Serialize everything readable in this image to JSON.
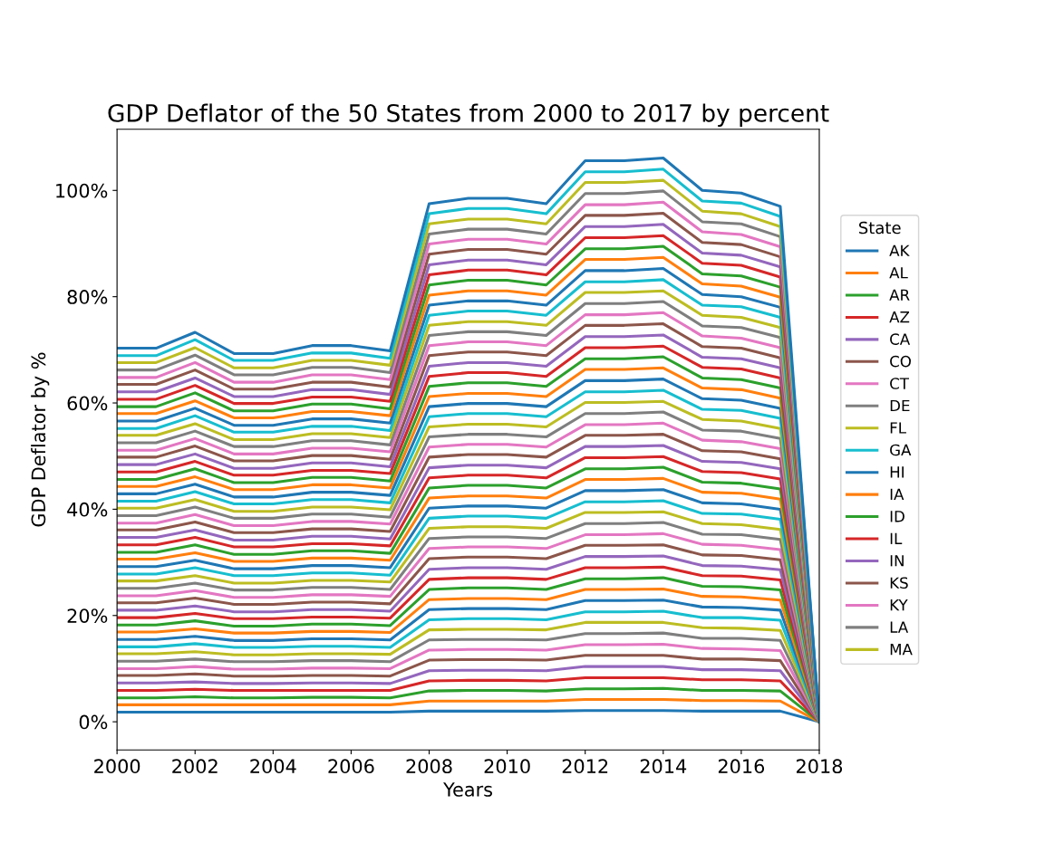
{
  "chart_data": {
    "type": "line",
    "title": "GDP Deflator of the 50 States from 2000 to 2017 by percent",
    "xlabel": "Years",
    "ylabel": "GDP Deflator by %",
    "legend_title": "State",
    "legend": "right",
    "grid": false,
    "x": [
      2000,
      2001,
      2002,
      2003,
      2004,
      2005,
      2006,
      2007,
      2008,
      2009,
      2010,
      2011,
      2012,
      2013,
      2014,
      2015,
      2016,
      2017,
      2018
    ],
    "xlim": [
      2000,
      2018
    ],
    "xticks": [
      2000,
      2002,
      2004,
      2006,
      2008,
      2010,
      2012,
      2014,
      2016,
      2018
    ],
    "ylim": [
      -5.3,
      111.5
    ],
    "yticks": [
      {
        "value": 0,
        "label": "0%"
      },
      {
        "value": 20,
        "label": "20%"
      },
      {
        "value": 40,
        "label": "40%"
      },
      {
        "value": 60,
        "label": "60%"
      },
      {
        "value": 80,
        "label": "80%"
      },
      {
        "value": 100,
        "label": "100%"
      }
    ],
    "series": [
      {
        "name": "AK",
        "color": "#1f77b4",
        "values": [
          1.8,
          1.8,
          1.8,
          1.8,
          1.8,
          1.8,
          1.8,
          1.8,
          2.0,
          2.0,
          2.0,
          2.0,
          2.1,
          2.1,
          2.1,
          2.0,
          2.0,
          2.0,
          0
        ]
      },
      {
        "name": "AL",
        "color": "#ff7f0e",
        "values": [
          3.2,
          3.2,
          3.2,
          3.2,
          3.2,
          3.2,
          3.2,
          3.2,
          3.9,
          3.9,
          3.9,
          3.9,
          4.2,
          4.2,
          4.2,
          4.0,
          4.0,
          3.9,
          0
        ]
      },
      {
        "name": "AR",
        "color": "#2ca02c",
        "values": [
          4.5,
          4.5,
          4.7,
          4.5,
          4.5,
          4.6,
          4.6,
          4.5,
          5.8,
          5.9,
          5.9,
          5.8,
          6.2,
          6.2,
          6.3,
          5.9,
          5.9,
          5.8,
          0
        ]
      },
      {
        "name": "AZ",
        "color": "#d62728",
        "values": [
          5.9,
          5.9,
          6.1,
          5.9,
          5.9,
          5.9,
          5.9,
          5.9,
          7.7,
          7.8,
          7.8,
          7.7,
          8.3,
          8.3,
          8.3,
          7.9,
          7.9,
          7.7,
          0
        ]
      },
      {
        "name": "CA",
        "color": "#9467bd",
        "values": [
          7.3,
          7.3,
          7.5,
          7.2,
          7.2,
          7.3,
          7.3,
          7.2,
          9.6,
          9.7,
          9.7,
          9.6,
          10.4,
          10.4,
          10.4,
          9.8,
          9.8,
          9.6,
          0
        ]
      },
      {
        "name": "CO",
        "color": "#8c564b",
        "values": [
          8.7,
          8.7,
          9.0,
          8.6,
          8.6,
          8.7,
          8.7,
          8.6,
          11.6,
          11.7,
          11.7,
          11.6,
          12.5,
          12.5,
          12.5,
          11.8,
          11.8,
          11.5,
          0
        ]
      },
      {
        "name": "CT",
        "color": "#e377c2",
        "values": [
          10.0,
          10.0,
          10.4,
          9.9,
          9.9,
          10.1,
          10.1,
          10.0,
          13.5,
          13.6,
          13.6,
          13.5,
          14.5,
          14.5,
          14.6,
          13.8,
          13.7,
          13.4,
          0
        ]
      },
      {
        "name": "DE",
        "color": "#7f7f7f",
        "values": [
          11.4,
          11.4,
          11.8,
          11.3,
          11.3,
          11.5,
          11.5,
          11.3,
          15.4,
          15.5,
          15.5,
          15.4,
          16.6,
          16.6,
          16.7,
          15.7,
          15.7,
          15.3,
          0
        ]
      },
      {
        "name": "FL",
        "color": "#bcbd22",
        "values": [
          12.8,
          12.8,
          13.2,
          12.6,
          12.6,
          12.8,
          12.8,
          12.7,
          17.3,
          17.4,
          17.4,
          17.3,
          18.7,
          18.7,
          18.7,
          17.7,
          17.6,
          17.2,
          0
        ]
      },
      {
        "name": "GA",
        "color": "#17becf",
        "values": [
          14.1,
          14.1,
          14.7,
          14.0,
          14.0,
          14.2,
          14.2,
          14.0,
          19.2,
          19.4,
          19.4,
          19.2,
          20.7,
          20.7,
          20.8,
          19.6,
          19.6,
          19.1,
          0
        ]
      },
      {
        "name": "HI",
        "color": "#1f77b4",
        "values": [
          15.5,
          15.5,
          16.1,
          15.3,
          15.3,
          15.6,
          15.6,
          15.4,
          21.1,
          21.3,
          21.3,
          21.1,
          22.8,
          22.8,
          22.9,
          21.6,
          21.5,
          21.0,
          0
        ]
      },
      {
        "name": "IA",
        "color": "#ff7f0e",
        "values": [
          16.9,
          16.9,
          17.5,
          16.7,
          16.7,
          17.0,
          17.0,
          16.8,
          23.0,
          23.2,
          23.2,
          23.0,
          24.9,
          24.9,
          25.0,
          23.6,
          23.5,
          22.9,
          0
        ]
      },
      {
        "name": "ID",
        "color": "#2ca02c",
        "values": [
          18.2,
          18.2,
          19.0,
          18.0,
          18.0,
          18.4,
          18.4,
          18.1,
          24.9,
          25.2,
          25.2,
          24.9,
          26.9,
          26.9,
          27.1,
          25.5,
          25.4,
          24.8,
          0
        ]
      },
      {
        "name": "IL",
        "color": "#d62728",
        "values": [
          19.6,
          19.6,
          20.4,
          19.4,
          19.4,
          19.7,
          19.7,
          19.5,
          26.8,
          27.1,
          27.1,
          26.8,
          29.0,
          29.0,
          29.1,
          27.5,
          27.4,
          26.7,
          0
        ]
      },
      {
        "name": "IN",
        "color": "#9467bd",
        "values": [
          21.0,
          21.0,
          21.8,
          20.7,
          20.7,
          21.1,
          21.1,
          20.8,
          28.7,
          29.0,
          29.0,
          28.7,
          31.1,
          31.1,
          31.2,
          29.4,
          29.3,
          28.6,
          0
        ]
      },
      {
        "name": "KS",
        "color": "#8c564b",
        "values": [
          22.4,
          22.4,
          23.3,
          22.1,
          22.1,
          22.5,
          22.5,
          22.2,
          30.7,
          31.0,
          31.0,
          30.7,
          33.2,
          33.2,
          33.3,
          31.4,
          31.3,
          30.5,
          0
        ]
      },
      {
        "name": "KY",
        "color": "#e377c2",
        "values": [
          23.7,
          23.7,
          24.7,
          23.4,
          23.4,
          23.9,
          23.9,
          23.6,
          32.6,
          32.9,
          32.9,
          32.6,
          35.2,
          35.2,
          35.4,
          33.4,
          33.2,
          32.4,
          0
        ]
      },
      {
        "name": "LA",
        "color": "#7f7f7f",
        "values": [
          25.1,
          25.1,
          26.1,
          24.8,
          24.8,
          25.3,
          25.3,
          24.9,
          34.5,
          34.8,
          34.8,
          34.5,
          37.3,
          37.3,
          37.5,
          35.3,
          35.2,
          34.3,
          0
        ]
      },
      {
        "name": "MA",
        "color": "#bcbd22",
        "values": [
          26.5,
          26.5,
          27.5,
          26.1,
          26.1,
          26.6,
          26.6,
          26.3,
          36.4,
          36.7,
          36.7,
          36.4,
          39.4,
          39.4,
          39.5,
          37.3,
          37.1,
          36.2,
          0
        ]
      },
      {
        "color": "#17becf",
        "values": [
          27.8,
          27.8,
          29.0,
          27.5,
          27.5,
          28.0,
          28.0,
          27.6,
          38.3,
          38.7,
          38.7,
          38.3,
          41.4,
          41.4,
          41.6,
          39.2,
          39.1,
          38.1,
          0
        ]
      },
      {
        "color": "#1f77b4",
        "values": [
          29.2,
          29.2,
          30.4,
          28.8,
          28.8,
          29.4,
          29.4,
          29.0,
          40.2,
          40.6,
          40.6,
          40.2,
          43.5,
          43.5,
          43.7,
          41.2,
          41.0,
          40.0,
          0
        ]
      },
      {
        "color": "#ff7f0e",
        "values": [
          30.6,
          30.6,
          31.8,
          30.2,
          30.2,
          30.8,
          30.8,
          30.4,
          42.1,
          42.5,
          42.5,
          42.1,
          45.6,
          45.6,
          45.8,
          43.2,
          43.0,
          41.9,
          0
        ]
      },
      {
        "color": "#2ca02c",
        "values": [
          31.9,
          31.9,
          33.3,
          31.5,
          31.5,
          32.2,
          32.2,
          31.7,
          44.0,
          44.5,
          44.5,
          44.0,
          47.6,
          47.6,
          47.9,
          45.1,
          44.9,
          43.8,
          0
        ]
      },
      {
        "color": "#d62728",
        "values": [
          33.3,
          33.3,
          34.7,
          32.9,
          32.9,
          33.5,
          33.5,
          33.1,
          45.9,
          46.4,
          46.4,
          45.9,
          49.7,
          49.7,
          49.9,
          47.1,
          46.9,
          45.7,
          0
        ]
      },
      {
        "color": "#9467bd",
        "values": [
          34.7,
          34.7,
          36.1,
          34.2,
          34.2,
          34.9,
          34.9,
          34.4,
          47.8,
          48.3,
          48.3,
          47.8,
          51.8,
          51.8,
          52.0,
          49.0,
          48.8,
          47.6,
          0
        ]
      },
      {
        "color": "#8c564b",
        "values": [
          36.1,
          36.1,
          37.6,
          35.6,
          35.6,
          36.3,
          36.3,
          35.8,
          49.8,
          50.3,
          50.3,
          49.8,
          53.9,
          53.9,
          54.1,
          51.0,
          50.8,
          49.5,
          0
        ]
      },
      {
        "color": "#e377c2",
        "values": [
          37.4,
          37.4,
          39.0,
          36.9,
          36.9,
          37.7,
          37.7,
          37.2,
          51.7,
          52.2,
          52.2,
          51.7,
          55.9,
          55.9,
          56.2,
          53.0,
          52.7,
          51.4,
          0
        ]
      },
      {
        "color": "#7f7f7f",
        "values": [
          38.8,
          38.8,
          40.4,
          38.3,
          38.3,
          39.1,
          39.1,
          38.5,
          53.6,
          54.1,
          54.1,
          53.6,
          58.0,
          58.0,
          58.3,
          54.9,
          54.7,
          53.3,
          0
        ]
      },
      {
        "color": "#bcbd22",
        "values": [
          40.2,
          40.2,
          41.8,
          39.6,
          39.6,
          40.4,
          40.4,
          39.9,
          55.5,
          56.0,
          56.0,
          55.5,
          60.1,
          60.1,
          60.3,
          56.9,
          56.6,
          55.2,
          0
        ]
      },
      {
        "color": "#17becf",
        "values": [
          41.5,
          41.5,
          43.3,
          41.0,
          41.0,
          41.8,
          41.8,
          41.2,
          57.4,
          58.0,
          58.0,
          57.4,
          62.1,
          62.1,
          62.4,
          58.8,
          58.6,
          57.1,
          0
        ]
      },
      {
        "color": "#1f77b4",
        "values": [
          42.9,
          42.9,
          44.7,
          42.3,
          42.3,
          43.2,
          43.2,
          42.6,
          59.3,
          59.9,
          59.9,
          59.3,
          64.2,
          64.2,
          64.5,
          60.8,
          60.5,
          59.0,
          0
        ]
      },
      {
        "color": "#ff7f0e",
        "values": [
          44.3,
          44.3,
          46.1,
          43.7,
          43.7,
          44.6,
          44.6,
          44.0,
          61.2,
          61.8,
          61.8,
          61.2,
          66.3,
          66.3,
          66.6,
          62.8,
          62.5,
          60.9,
          0
        ]
      },
      {
        "color": "#2ca02c",
        "values": [
          45.6,
          45.6,
          47.6,
          45.0,
          45.0,
          46.0,
          46.0,
          45.3,
          63.1,
          63.8,
          63.8,
          63.1,
          68.3,
          68.3,
          68.7,
          64.7,
          64.4,
          62.8,
          0
        ]
      },
      {
        "color": "#d62728",
        "values": [
          47.0,
          47.0,
          49.0,
          46.4,
          46.4,
          47.3,
          47.3,
          46.7,
          65.0,
          65.7,
          65.7,
          65.0,
          70.4,
          70.4,
          70.7,
          66.7,
          66.4,
          64.7,
          0
        ]
      },
      {
        "color": "#9467bd",
        "values": [
          48.4,
          48.4,
          50.4,
          47.7,
          47.7,
          48.7,
          48.7,
          48.0,
          66.9,
          67.6,
          67.6,
          66.9,
          72.5,
          72.5,
          72.8,
          68.6,
          68.3,
          66.6,
          0
        ]
      },
      {
        "color": "#8c564b",
        "values": [
          49.8,
          49.8,
          51.9,
          49.1,
          49.1,
          50.1,
          50.1,
          49.4,
          68.9,
          69.6,
          69.6,
          68.9,
          74.6,
          74.6,
          74.9,
          70.6,
          70.3,
          68.5,
          0
        ]
      },
      {
        "color": "#e377c2",
        "values": [
          51.1,
          51.1,
          53.3,
          50.4,
          50.4,
          51.5,
          51.5,
          50.8,
          70.8,
          71.5,
          71.5,
          70.8,
          76.6,
          76.6,
          77.0,
          72.6,
          72.2,
          70.4,
          0
        ]
      },
      {
        "color": "#7f7f7f",
        "values": [
          52.5,
          52.5,
          54.7,
          51.8,
          51.8,
          52.9,
          52.9,
          52.1,
          72.7,
          73.4,
          73.4,
          72.7,
          78.7,
          78.7,
          79.1,
          74.5,
          74.2,
          72.3,
          0
        ]
      },
      {
        "color": "#bcbd22",
        "values": [
          53.9,
          53.9,
          56.1,
          53.1,
          53.1,
          54.2,
          54.2,
          53.5,
          74.6,
          75.3,
          75.3,
          74.6,
          80.8,
          80.8,
          81.1,
          76.5,
          76.1,
          74.2,
          0
        ]
      },
      {
        "color": "#17becf",
        "values": [
          55.2,
          55.2,
          57.6,
          54.5,
          54.5,
          55.6,
          55.6,
          54.8,
          76.5,
          77.3,
          77.3,
          76.5,
          82.8,
          82.8,
          83.2,
          78.4,
          78.1,
          76.1,
          0
        ]
      },
      {
        "color": "#1f77b4",
        "values": [
          56.6,
          56.6,
          59.0,
          55.8,
          55.8,
          57.0,
          57.0,
          56.2,
          78.4,
          79.2,
          79.2,
          78.4,
          84.9,
          84.9,
          85.3,
          80.4,
          80.0,
          78.0,
          0
        ]
      },
      {
        "color": "#ff7f0e",
        "values": [
          58.0,
          58.0,
          60.4,
          57.2,
          57.2,
          58.4,
          58.4,
          57.6,
          80.3,
          81.1,
          81.1,
          80.3,
          87.0,
          87.0,
          87.4,
          82.4,
          82.0,
          79.9,
          0
        ]
      },
      {
        "color": "#2ca02c",
        "values": [
          59.3,
          59.3,
          61.9,
          58.5,
          58.5,
          59.8,
          59.8,
          58.9,
          82.2,
          83.1,
          83.1,
          82.2,
          89.0,
          89.0,
          89.5,
          84.3,
          83.9,
          81.8,
          0
        ]
      },
      {
        "color": "#d62728",
        "values": [
          60.7,
          60.7,
          63.3,
          59.9,
          59.9,
          61.1,
          61.1,
          60.3,
          84.1,
          85.0,
          85.0,
          84.1,
          91.1,
          91.1,
          91.5,
          86.3,
          85.9,
          83.7,
          0
        ]
      },
      {
        "color": "#9467bd",
        "values": [
          62.1,
          62.1,
          64.7,
          61.2,
          61.2,
          62.5,
          62.5,
          61.6,
          86.0,
          86.9,
          86.9,
          86.0,
          93.2,
          93.2,
          93.6,
          88.2,
          87.8,
          85.6,
          0
        ]
      },
      {
        "color": "#8c564b",
        "values": [
          63.5,
          63.5,
          66.2,
          62.6,
          62.6,
          63.9,
          63.9,
          63.0,
          88.0,
          88.9,
          88.9,
          88.0,
          95.3,
          95.3,
          95.7,
          90.2,
          89.8,
          87.5,
          0
        ]
      },
      {
        "color": "#e377c2",
        "values": [
          64.8,
          64.8,
          67.6,
          63.9,
          63.9,
          65.3,
          65.3,
          64.4,
          89.9,
          90.8,
          90.8,
          89.9,
          97.3,
          97.3,
          97.8,
          92.2,
          91.7,
          89.4,
          0
        ]
      },
      {
        "color": "#7f7f7f",
        "values": [
          66.2,
          66.2,
          69.0,
          65.3,
          65.3,
          66.7,
          66.7,
          65.7,
          91.8,
          92.7,
          92.7,
          91.8,
          99.4,
          99.4,
          99.9,
          94.1,
          93.7,
          91.3,
          0
        ]
      },
      {
        "color": "#bcbd22",
        "values": [
          67.6,
          67.6,
          70.4,
          66.6,
          66.6,
          68.0,
          68.0,
          67.1,
          93.7,
          94.6,
          94.6,
          93.7,
          101.5,
          101.5,
          101.9,
          96.1,
          95.6,
          93.2,
          0
        ]
      },
      {
        "color": "#17becf",
        "values": [
          68.9,
          68.9,
          71.9,
          68.0,
          68.0,
          69.4,
          69.4,
          68.4,
          95.6,
          96.6,
          96.6,
          95.6,
          103.5,
          103.5,
          104.0,
          98.0,
          97.6,
          95.1,
          0
        ]
      },
      {
        "color": "#1f77b4",
        "values": [
          70.3,
          70.3,
          73.3,
          69.3,
          69.3,
          70.8,
          70.8,
          69.8,
          97.5,
          98.5,
          98.5,
          97.5,
          105.6,
          105.6,
          106.1,
          100.0,
          99.5,
          97.0,
          0
        ]
      }
    ]
  }
}
